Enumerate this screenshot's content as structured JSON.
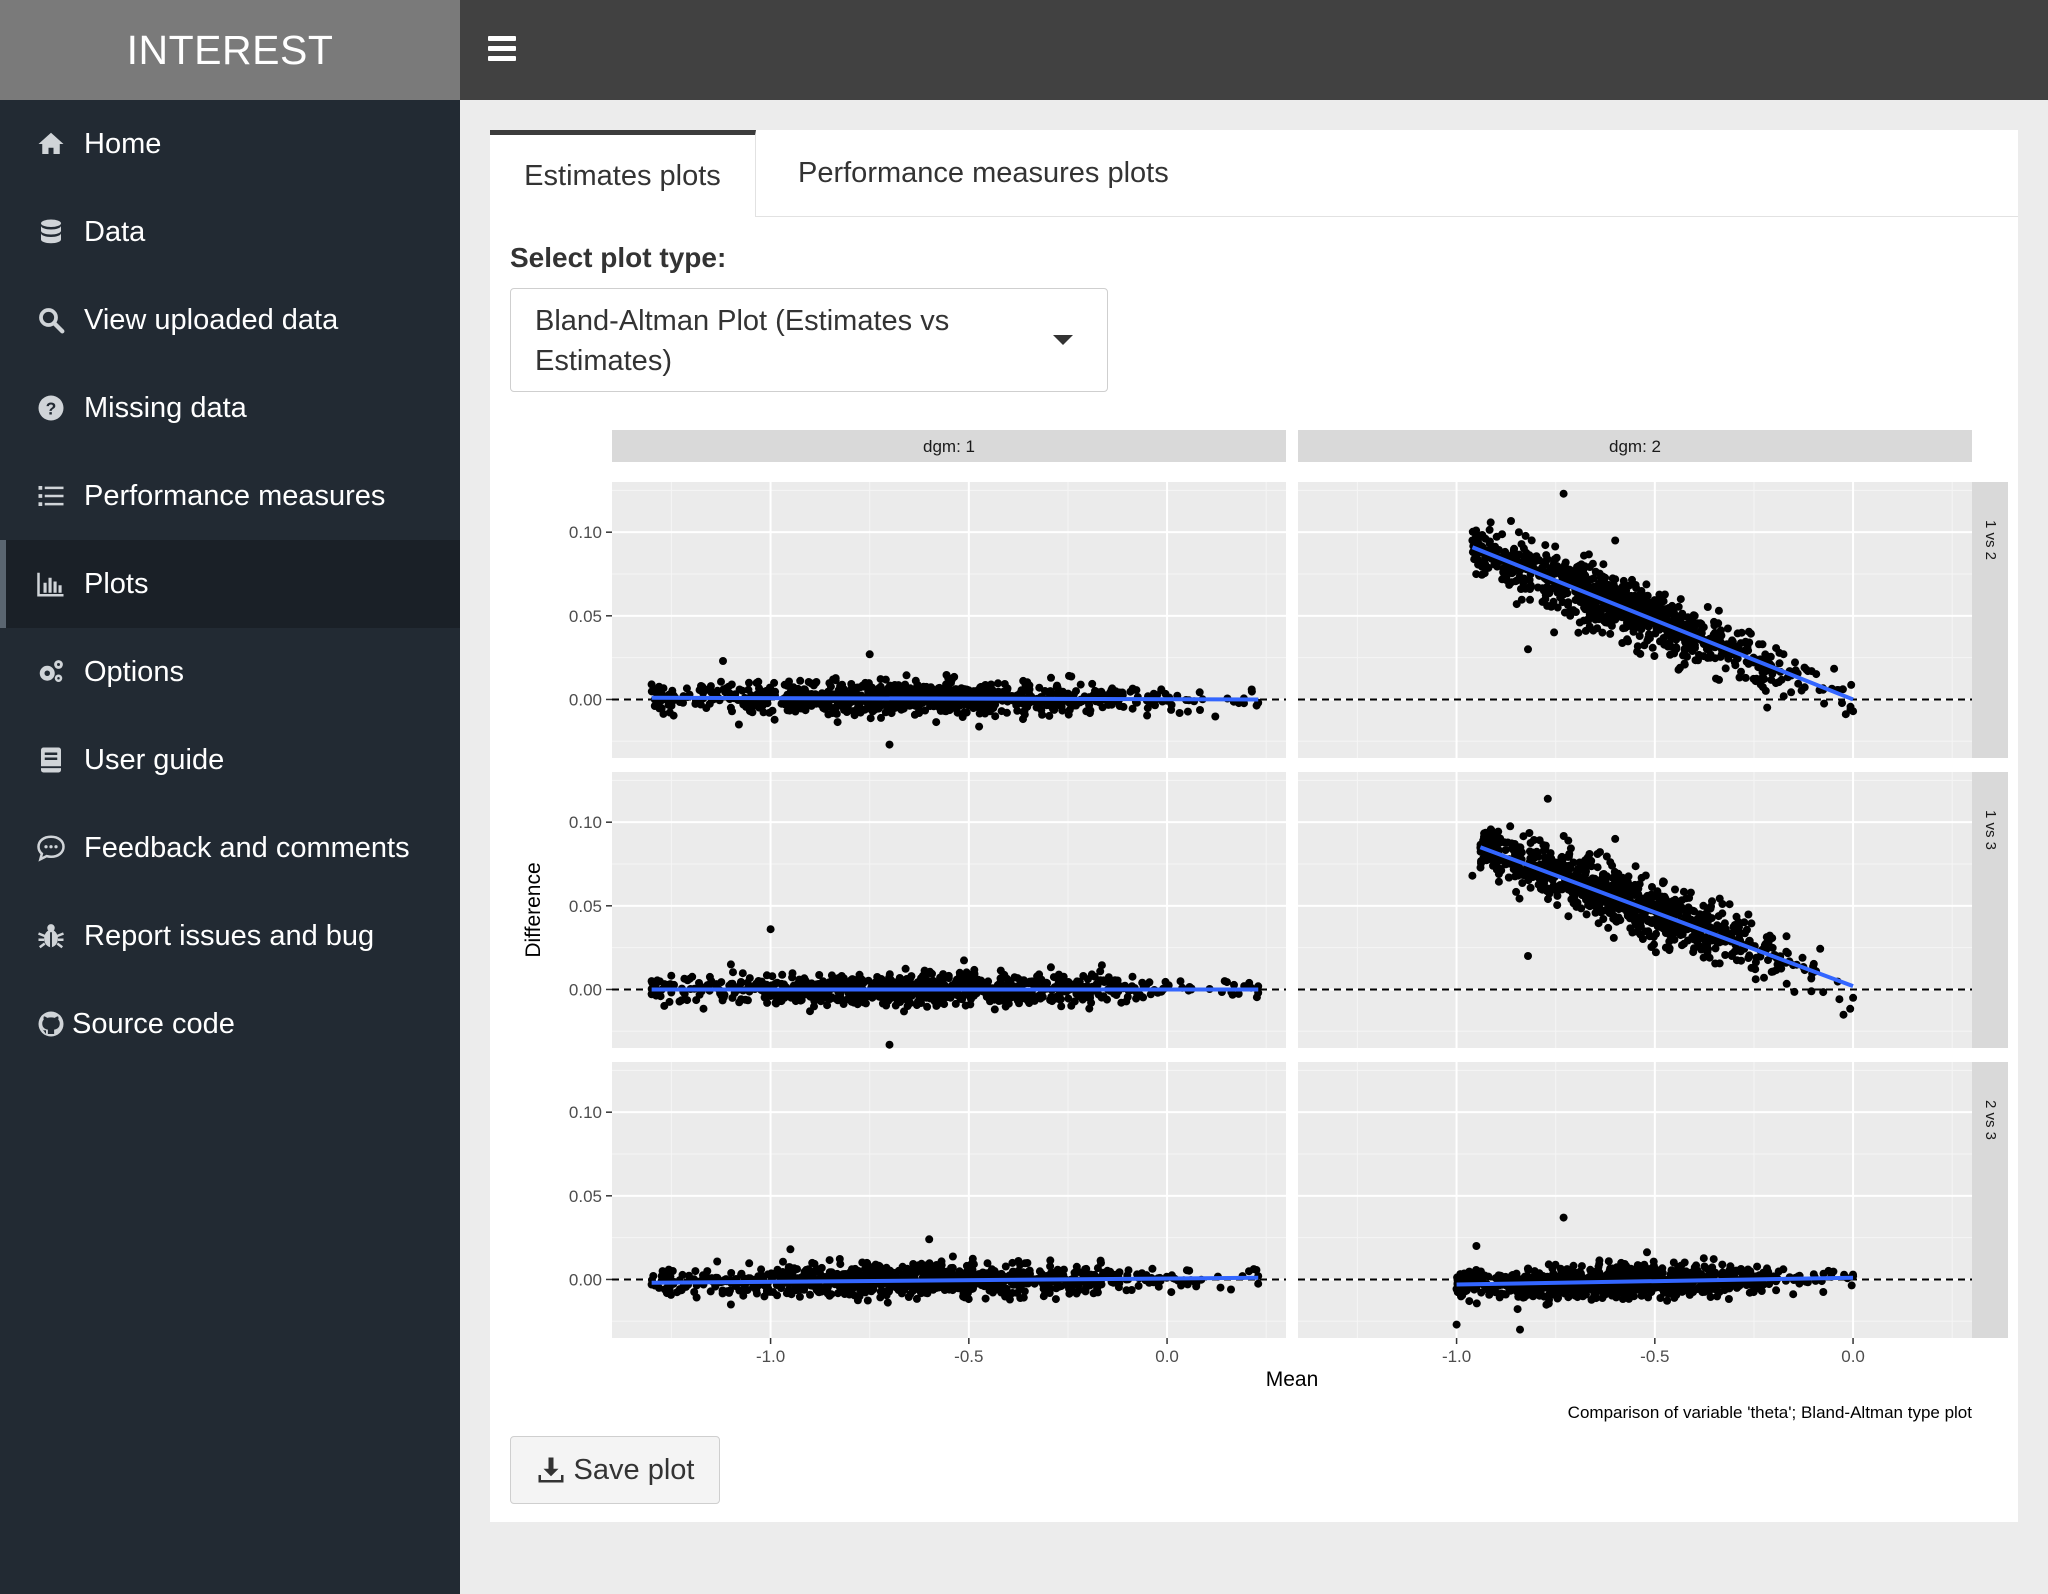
{
  "app": {
    "title": "INTEREST"
  },
  "sidebar": {
    "items": [
      {
        "label": "Home",
        "icon": "home-icon",
        "active": false
      },
      {
        "label": "Data",
        "icon": "database-icon",
        "active": false
      },
      {
        "label": "View uploaded data",
        "icon": "search-icon",
        "active": false
      },
      {
        "label": "Missing data",
        "icon": "question-circle-icon",
        "active": false
      },
      {
        "label": "Performance measures",
        "icon": "list-icon",
        "active": false
      },
      {
        "label": "Plots",
        "icon": "bar-chart-icon",
        "active": true
      },
      {
        "label": "Options",
        "icon": "gears-icon",
        "active": false
      },
      {
        "label": "User guide",
        "icon": "book-icon",
        "active": false
      },
      {
        "label": "Feedback and comments",
        "icon": "comments-icon",
        "active": false
      },
      {
        "label": "Report issues and bug",
        "icon": "bug-icon",
        "active": false
      },
      {
        "label": "Source code",
        "icon": "github-icon",
        "active": false
      }
    ]
  },
  "tabs": [
    {
      "label": "Estimates plots",
      "active": true
    },
    {
      "label": "Performance measures plots",
      "active": false
    }
  ],
  "controls": {
    "select_label": "Select plot type:",
    "select_value": "Bland-Altman Plot (Estimates vs Estimates)"
  },
  "save_button": {
    "label": "Save plot",
    "icon": "download-icon"
  },
  "colors": {
    "fit_line": "#3366ff",
    "panel_bg": "#ebebeb",
    "strip_bg": "#d9d9d9",
    "sidebar_bg": "#222a33",
    "header_bg": "#414141"
  },
  "chart_data": {
    "type": "scatter",
    "facet_cols": [
      "dgm: 1",
      "dgm: 2"
    ],
    "facet_rows": [
      "1 vs 2",
      "1 vs 3",
      "2 vs 3"
    ],
    "xlabel": "Mean",
    "ylabel": "Difference",
    "caption": "Comparison of variable 'theta'; Bland-Altman type plot",
    "xlim": [
      -1.4,
      0.3
    ],
    "ylim": [
      -0.035,
      0.13
    ],
    "xticks": [
      -1.0,
      -0.5,
      0.0
    ],
    "xtick_labels": [
      "-1.0",
      "-0.5",
      "0.0"
    ],
    "yticks": [
      0.0,
      0.05,
      0.1
    ],
    "ytick_labels": [
      "0.00",
      "0.05",
      "0.10"
    ],
    "reference_line_y": 0,
    "grid": true,
    "panels": [
      {
        "row": "1 vs 2",
        "col": "dgm: 1",
        "x_range": [
          -1.3,
          0.23
        ],
        "fit": [
          [
            -1.3,
            0.001
          ],
          [
            0.23,
            0.0
          ]
        ],
        "points": [
          [
            -1.3,
            0.009
          ],
          [
            -1.12,
            0.023
          ],
          [
            -1.1,
            -0.005
          ],
          [
            -0.75,
            0.027
          ],
          [
            -0.7,
            -0.027
          ],
          [
            0.23,
            -0.002
          ],
          [
            -1.08,
            -0.015
          ]
        ]
      },
      {
        "row": "1 vs 2",
        "col": "dgm: 2",
        "x_range": [
          -0.96,
          0.0
        ],
        "fit": [
          [
            -0.96,
            0.091
          ],
          [
            0.0,
            0.0
          ]
        ],
        "points": [
          [
            -0.96,
            0.095
          ],
          [
            -0.73,
            0.123
          ],
          [
            -0.82,
            0.03
          ],
          [
            0.0,
            -0.007
          ],
          [
            -0.6,
            0.095
          ]
        ]
      },
      {
        "row": "1 vs 3",
        "col": "dgm: 1",
        "x_range": [
          -1.3,
          0.23
        ],
        "fit": [
          [
            -1.3,
            0.0
          ],
          [
            0.23,
            0.0
          ]
        ],
        "points": [
          [
            -1.3,
            0.005
          ],
          [
            -1.0,
            0.036
          ],
          [
            -0.7,
            -0.033
          ],
          [
            0.23,
            -0.002
          ],
          [
            -1.1,
            0.015
          ]
        ]
      },
      {
        "row": "1 vs 3",
        "col": "dgm: 2",
        "x_range": [
          -0.94,
          0.0
        ],
        "fit": [
          [
            -0.94,
            0.085
          ],
          [
            0.0,
            0.002
          ]
        ],
        "points": [
          [
            -0.96,
            0.068
          ],
          [
            -0.77,
            0.114
          ],
          [
            -0.82,
            0.02
          ],
          [
            0.0,
            -0.005
          ],
          [
            -0.6,
            0.09
          ]
        ]
      },
      {
        "row": "2 vs 3",
        "col": "dgm: 1",
        "x_range": [
          -1.3,
          0.23
        ],
        "fit": [
          [
            -1.3,
            -0.002
          ],
          [
            0.23,
            0.001
          ]
        ],
        "points": [
          [
            -1.3,
            -0.003
          ],
          [
            -0.6,
            0.024
          ],
          [
            -1.1,
            -0.015
          ],
          [
            0.23,
            0.002
          ],
          [
            -0.95,
            0.018
          ]
        ]
      },
      {
        "row": "2 vs 3",
        "col": "dgm: 2",
        "x_range": [
          -1.0,
          0.0
        ],
        "fit": [
          [
            -1.0,
            -0.003
          ],
          [
            0.0,
            0.001
          ]
        ],
        "points": [
          [
            -1.0,
            -0.027
          ],
          [
            -0.73,
            0.037
          ],
          [
            -0.84,
            -0.03
          ],
          [
            0.0,
            0.002
          ],
          [
            -0.95,
            0.02
          ]
        ]
      }
    ]
  }
}
